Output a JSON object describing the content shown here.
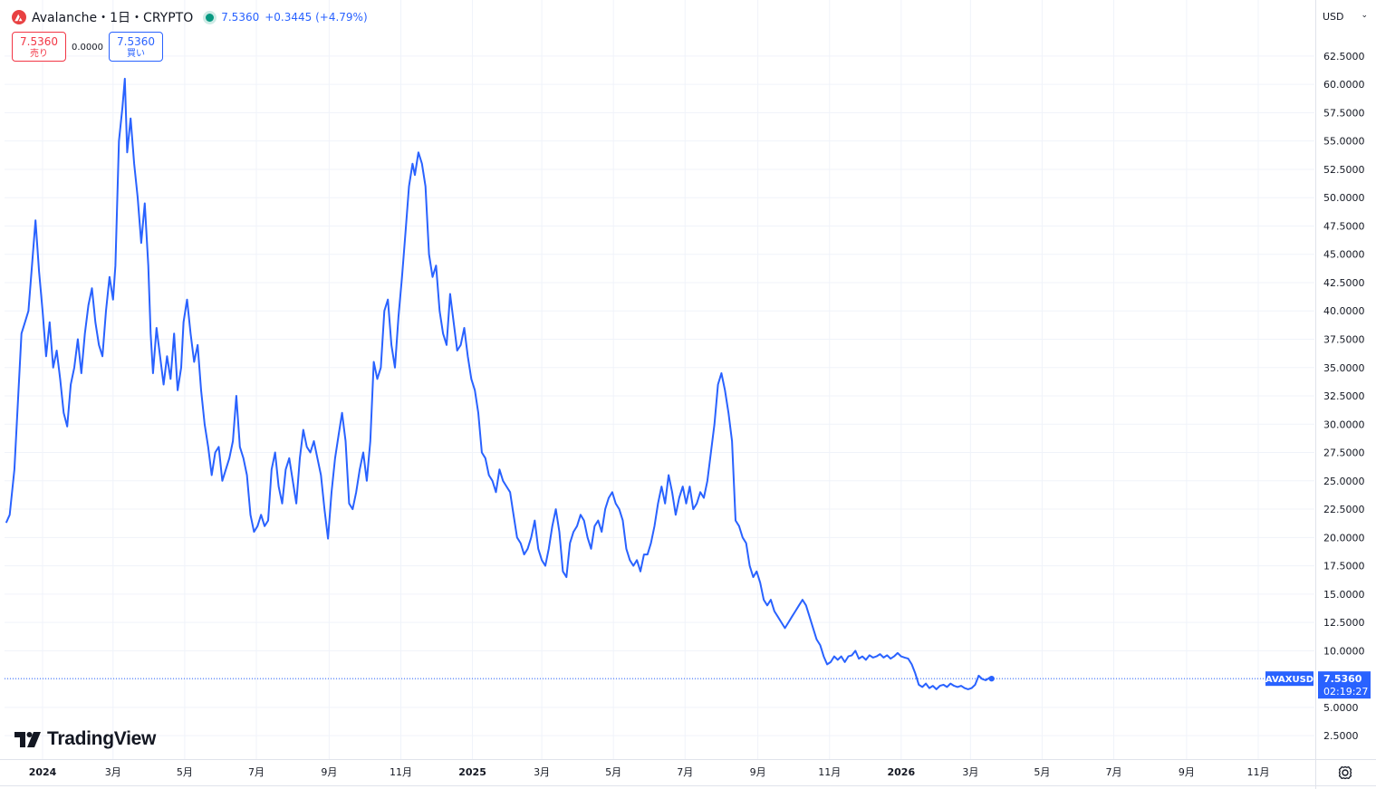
{
  "header": {
    "title": "Avalanche・1日・CRYPTO",
    "price": "7.5360",
    "change": "+0.3445 (+4.79%)"
  },
  "trade": {
    "sell_price": "7.5360",
    "sell_label": "売り",
    "spread": "0.0000",
    "buy_price": "7.5360",
    "buy_label": "買い"
  },
  "currency": "USD",
  "brand": "TradingView",
  "colors": {
    "line": "#2962ff",
    "sell": "#f23645",
    "buy": "#2962ff",
    "grid": "#f0f3fa",
    "status_dot": "#089981"
  },
  "price_tag": {
    "symbol": "AVAXUSD",
    "price": "7.5360",
    "countdown": "02:19:27"
  },
  "chart_data": {
    "type": "line",
    "series_label": "AVAXUSD",
    "ylim": [
      0,
      64.5
    ],
    "y_ticks": [
      "2.5000",
      "5.0000",
      "7.5000",
      "10.0000",
      "12.5000",
      "15.0000",
      "17.5000",
      "20.0000",
      "22.5000",
      "25.0000",
      "27.5000",
      "30.0000",
      "32.5000",
      "35.0000",
      "37.5000",
      "40.0000",
      "42.5000",
      "45.0000",
      "47.5000",
      "50.0000",
      "52.5000",
      "55.0000",
      "57.5000",
      "60.0000",
      "62.5000"
    ],
    "x_ticks": [
      {
        "label": "2024",
        "date": "2024-01-01",
        "bold": true
      },
      {
        "label": "3月",
        "date": "2024-03-01"
      },
      {
        "label": "5月",
        "date": "2024-05-01"
      },
      {
        "label": "7月",
        "date": "2024-07-01"
      },
      {
        "label": "9月",
        "date": "2024-09-01"
      },
      {
        "label": "11月",
        "date": "2024-11-01"
      },
      {
        "label": "2025",
        "date": "2025-01-01",
        "bold": true
      },
      {
        "label": "3月",
        "date": "2025-03-01"
      },
      {
        "label": "5月",
        "date": "2025-05-01"
      },
      {
        "label": "7月",
        "date": "2025-07-01"
      },
      {
        "label": "9月",
        "date": "2025-09-01"
      },
      {
        "label": "11月",
        "date": "2025-11-01"
      },
      {
        "label": "2026",
        "date": "2026-01-01",
        "bold": true
      },
      {
        "label": "3月",
        "date": "2026-03-01"
      },
      {
        "label": "5月",
        "date": "2026-05-01"
      },
      {
        "label": "7月",
        "date": "2026-07-01"
      },
      {
        "label": "9月",
        "date": "2026-09-01"
      },
      {
        "label": "11月",
        "date": "2026-11-01"
      }
    ],
    "last_value": 7.536,
    "points": [
      [
        "2023-12-01",
        21.3
      ],
      [
        "2023-12-04",
        22.0
      ],
      [
        "2023-12-08",
        26.0
      ],
      [
        "2023-12-11",
        32.0
      ],
      [
        "2023-12-14",
        38.0
      ],
      [
        "2023-12-17",
        39.0
      ],
      [
        "2023-12-20",
        40.0
      ],
      [
        "2023-12-23",
        44.0
      ],
      [
        "2023-12-26",
        48.0
      ],
      [
        "2023-12-29",
        43.5
      ],
      [
        "2024-01-01",
        40.0
      ],
      [
        "2024-01-04",
        36.0
      ],
      [
        "2024-01-07",
        39.0
      ],
      [
        "2024-01-10",
        35.0
      ],
      [
        "2024-01-13",
        36.5
      ],
      [
        "2024-01-16",
        34.0
      ],
      [
        "2024-01-19",
        31.0
      ],
      [
        "2024-01-22",
        29.8
      ],
      [
        "2024-01-25",
        33.5
      ],
      [
        "2024-01-28",
        35.0
      ],
      [
        "2024-01-31",
        37.5
      ],
      [
        "2024-02-03",
        34.5
      ],
      [
        "2024-02-06",
        38.0
      ],
      [
        "2024-02-09",
        40.5
      ],
      [
        "2024-02-12",
        42.0
      ],
      [
        "2024-02-15",
        39.0
      ],
      [
        "2024-02-18",
        37.0
      ],
      [
        "2024-02-21",
        36.0
      ],
      [
        "2024-02-24",
        40.0
      ],
      [
        "2024-02-27",
        43.0
      ],
      [
        "2024-03-01",
        41.0
      ],
      [
        "2024-03-03",
        44.0
      ],
      [
        "2024-03-06",
        55.0
      ],
      [
        "2024-03-09",
        58.0
      ],
      [
        "2024-03-11",
        60.5
      ],
      [
        "2024-03-13",
        54.0
      ],
      [
        "2024-03-16",
        57.0
      ],
      [
        "2024-03-19",
        53.0
      ],
      [
        "2024-03-22",
        50.0
      ],
      [
        "2024-03-25",
        46.0
      ],
      [
        "2024-03-28",
        49.5
      ],
      [
        "2024-03-31",
        44.0
      ],
      [
        "2024-04-02",
        38.0
      ],
      [
        "2024-04-04",
        34.5
      ],
      [
        "2024-04-07",
        38.5
      ],
      [
        "2024-04-10",
        36.0
      ],
      [
        "2024-04-13",
        33.5
      ],
      [
        "2024-04-16",
        36.0
      ],
      [
        "2024-04-19",
        34.0
      ],
      [
        "2024-04-22",
        38.0
      ],
      [
        "2024-04-25",
        33.0
      ],
      [
        "2024-04-28",
        35.0
      ],
      [
        "2024-04-30",
        39.0
      ],
      [
        "2024-05-03",
        41.0
      ],
      [
        "2024-05-06",
        38.0
      ],
      [
        "2024-05-09",
        35.5
      ],
      [
        "2024-05-12",
        37.0
      ],
      [
        "2024-05-15",
        33.0
      ],
      [
        "2024-05-18",
        30.0
      ],
      [
        "2024-05-21",
        28.0
      ],
      [
        "2024-05-24",
        25.5
      ],
      [
        "2024-05-27",
        27.5
      ],
      [
        "2024-05-30",
        28.0
      ],
      [
        "2024-06-02",
        25.0
      ],
      [
        "2024-06-05",
        26.0
      ],
      [
        "2024-06-08",
        27.0
      ],
      [
        "2024-06-11",
        28.5
      ],
      [
        "2024-06-14",
        32.5
      ],
      [
        "2024-06-17",
        28.0
      ],
      [
        "2024-06-20",
        27.0
      ],
      [
        "2024-06-23",
        25.5
      ],
      [
        "2024-06-26",
        22.0
      ],
      [
        "2024-06-29",
        20.5
      ],
      [
        "2024-07-02",
        21.0
      ],
      [
        "2024-07-05",
        22.0
      ],
      [
        "2024-07-08",
        21.0
      ],
      [
        "2024-07-11",
        21.5
      ],
      [
        "2024-07-14",
        26.0
      ],
      [
        "2024-07-17",
        27.5
      ],
      [
        "2024-07-20",
        24.5
      ],
      [
        "2024-07-23",
        23.0
      ],
      [
        "2024-07-26",
        26.0
      ],
      [
        "2024-07-29",
        27.0
      ],
      [
        "2024-08-01",
        25.0
      ],
      [
        "2024-08-04",
        23.0
      ],
      [
        "2024-08-07",
        27.0
      ],
      [
        "2024-08-10",
        29.5
      ],
      [
        "2024-08-13",
        28.0
      ],
      [
        "2024-08-16",
        27.5
      ],
      [
        "2024-08-19",
        28.5
      ],
      [
        "2024-08-22",
        27.0
      ],
      [
        "2024-08-25",
        25.5
      ],
      [
        "2024-08-28",
        22.5
      ],
      [
        "2024-08-31",
        19.9
      ],
      [
        "2024-09-03",
        24.0
      ],
      [
        "2024-09-06",
        27.0
      ],
      [
        "2024-09-09",
        29.0
      ],
      [
        "2024-09-12",
        31.0
      ],
      [
        "2024-09-15",
        28.5
      ],
      [
        "2024-09-18",
        23.0
      ],
      [
        "2024-09-21",
        22.5
      ],
      [
        "2024-09-24",
        24.0
      ],
      [
        "2024-09-27",
        26.0
      ],
      [
        "2024-09-30",
        27.5
      ],
      [
        "2024-10-03",
        25.0
      ],
      [
        "2024-10-06",
        28.5
      ],
      [
        "2024-10-09",
        35.5
      ],
      [
        "2024-10-12",
        34.0
      ],
      [
        "2024-10-15",
        35.0
      ],
      [
        "2024-10-18",
        40.0
      ],
      [
        "2024-10-21",
        41.0
      ],
      [
        "2024-10-24",
        37.0
      ],
      [
        "2024-10-27",
        35.0
      ],
      [
        "2024-10-30",
        39.5
      ],
      [
        "2024-11-02",
        43.0
      ],
      [
        "2024-11-05",
        47.0
      ],
      [
        "2024-11-08",
        51.0
      ],
      [
        "2024-11-11",
        53.0
      ],
      [
        "2024-11-13",
        52.0
      ],
      [
        "2024-11-16",
        54.0
      ],
      [
        "2024-11-19",
        53.0
      ],
      [
        "2024-11-22",
        51.0
      ],
      [
        "2024-11-25",
        45.0
      ],
      [
        "2024-11-28",
        43.0
      ],
      [
        "2024-12-01",
        44.0
      ],
      [
        "2024-12-04",
        40.0
      ],
      [
        "2024-12-07",
        38.0
      ],
      [
        "2024-12-10",
        37.0
      ],
      [
        "2024-12-13",
        41.5
      ],
      [
        "2024-12-16",
        39.0
      ],
      [
        "2024-12-19",
        36.5
      ],
      [
        "2024-12-22",
        37.0
      ],
      [
        "2024-12-25",
        38.5
      ],
      [
        "2024-12-28",
        36.0
      ],
      [
        "2024-12-31",
        34.0
      ],
      [
        "2025-01-03",
        33.0
      ],
      [
        "2025-01-06",
        31.0
      ],
      [
        "2025-01-09",
        27.5
      ],
      [
        "2025-01-12",
        27.0
      ],
      [
        "2025-01-15",
        25.5
      ],
      [
        "2025-01-18",
        25.0
      ],
      [
        "2025-01-21",
        24.0
      ],
      [
        "2025-01-24",
        26.0
      ],
      [
        "2025-01-27",
        25.0
      ],
      [
        "2025-01-30",
        24.5
      ],
      [
        "2025-02-02",
        24.0
      ],
      [
        "2025-02-05",
        22.0
      ],
      [
        "2025-02-08",
        20.0
      ],
      [
        "2025-02-11",
        19.5
      ],
      [
        "2025-02-14",
        18.5
      ],
      [
        "2025-02-17",
        19.0
      ],
      [
        "2025-02-20",
        20.0
      ],
      [
        "2025-02-23",
        21.5
      ],
      [
        "2025-02-26",
        19.0
      ],
      [
        "2025-03-01",
        18.0
      ],
      [
        "2025-03-04",
        17.5
      ],
      [
        "2025-03-07",
        19.0
      ],
      [
        "2025-03-10",
        21.0
      ],
      [
        "2025-03-13",
        22.5
      ],
      [
        "2025-03-16",
        20.5
      ],
      [
        "2025-03-19",
        17.0
      ],
      [
        "2025-03-22",
        16.5
      ],
      [
        "2025-03-25",
        19.5
      ],
      [
        "2025-03-28",
        20.5
      ],
      [
        "2025-03-31",
        21.0
      ],
      [
        "2025-04-03",
        22.0
      ],
      [
        "2025-04-06",
        21.5
      ],
      [
        "2025-04-09",
        20.0
      ],
      [
        "2025-04-12",
        19.0
      ],
      [
        "2025-04-15",
        21.0
      ],
      [
        "2025-04-18",
        21.5
      ],
      [
        "2025-04-21",
        20.5
      ],
      [
        "2025-04-24",
        22.5
      ],
      [
        "2025-04-27",
        23.5
      ],
      [
        "2025-04-30",
        24.0
      ],
      [
        "2025-05-03",
        23.0
      ],
      [
        "2025-05-06",
        22.5
      ],
      [
        "2025-05-09",
        21.5
      ],
      [
        "2025-05-12",
        19.0
      ],
      [
        "2025-05-15",
        18.0
      ],
      [
        "2025-05-18",
        17.5
      ],
      [
        "2025-05-21",
        18.0
      ],
      [
        "2025-05-24",
        17.0
      ],
      [
        "2025-05-27",
        18.5
      ],
      [
        "2025-05-30",
        18.5
      ],
      [
        "2025-06-02",
        19.5
      ],
      [
        "2025-06-05",
        21.0
      ],
      [
        "2025-06-08",
        23.0
      ],
      [
        "2025-06-11",
        24.5
      ],
      [
        "2025-06-14",
        23.0
      ],
      [
        "2025-06-17",
        25.5
      ],
      [
        "2025-06-20",
        24.0
      ],
      [
        "2025-06-23",
        22.0
      ],
      [
        "2025-06-26",
        23.5
      ],
      [
        "2025-06-29",
        24.5
      ],
      [
        "2025-07-02",
        23.0
      ],
      [
        "2025-07-05",
        24.5
      ],
      [
        "2025-07-08",
        22.5
      ],
      [
        "2025-07-11",
        23.0
      ],
      [
        "2025-07-14",
        24.0
      ],
      [
        "2025-07-17",
        23.5
      ],
      [
        "2025-07-20",
        25.0
      ],
      [
        "2025-07-23",
        27.5
      ],
      [
        "2025-07-26",
        30.0
      ],
      [
        "2025-07-29",
        33.5
      ],
      [
        "2025-08-01",
        34.5
      ],
      [
        "2025-08-04",
        33.0
      ],
      [
        "2025-08-07",
        31.0
      ],
      [
        "2025-08-10",
        28.5
      ],
      [
        "2025-08-13",
        21.5
      ],
      [
        "2025-08-16",
        21.0
      ],
      [
        "2025-08-19",
        20.0
      ],
      [
        "2025-08-22",
        19.5
      ],
      [
        "2025-08-25",
        17.5
      ],
      [
        "2025-08-28",
        16.5
      ],
      [
        "2025-08-31",
        17.0
      ],
      [
        "2025-09-03",
        16.0
      ],
      [
        "2025-09-06",
        14.5
      ],
      [
        "2025-09-09",
        14.0
      ],
      [
        "2025-09-12",
        14.5
      ],
      [
        "2025-09-15",
        13.5
      ],
      [
        "2025-09-18",
        13.0
      ],
      [
        "2025-09-21",
        12.5
      ],
      [
        "2025-09-24",
        12.0
      ],
      [
        "2025-09-27",
        12.5
      ],
      [
        "2025-09-30",
        13.0
      ],
      [
        "2025-10-03",
        13.5
      ],
      [
        "2025-10-06",
        14.0
      ],
      [
        "2025-10-09",
        14.5
      ],
      [
        "2025-10-12",
        14.0
      ],
      [
        "2025-10-15",
        13.0
      ],
      [
        "2025-10-18",
        12.0
      ],
      [
        "2025-10-21",
        11.0
      ],
      [
        "2025-10-24",
        10.5
      ],
      [
        "2025-10-27",
        9.5
      ],
      [
        "2025-10-30",
        8.8
      ],
      [
        "2025-11-02",
        9.0
      ],
      [
        "2025-11-05",
        9.5
      ],
      [
        "2025-11-08",
        9.2
      ],
      [
        "2025-11-11",
        9.5
      ],
      [
        "2025-11-14",
        9.0
      ],
      [
        "2025-11-17",
        9.5
      ],
      [
        "2025-11-20",
        9.6
      ],
      [
        "2025-11-23",
        10.0
      ],
      [
        "2025-11-26",
        9.3
      ],
      [
        "2025-11-29",
        9.5
      ],
      [
        "2025-12-02",
        9.2
      ],
      [
        "2025-12-05",
        9.6
      ],
      [
        "2025-12-08",
        9.4
      ],
      [
        "2025-12-11",
        9.5
      ],
      [
        "2025-12-14",
        9.7
      ],
      [
        "2025-12-17",
        9.4
      ],
      [
        "2025-12-20",
        9.6
      ],
      [
        "2025-12-23",
        9.3
      ],
      [
        "2025-12-26",
        9.5
      ],
      [
        "2025-12-29",
        9.8
      ],
      [
        "2026-01-01",
        9.5
      ],
      [
        "2026-01-04",
        9.4
      ],
      [
        "2026-01-07",
        9.3
      ],
      [
        "2026-01-10",
        8.8
      ],
      [
        "2026-01-13",
        8.0
      ],
      [
        "2026-01-16",
        7.0
      ],
      [
        "2026-01-19",
        6.8
      ],
      [
        "2026-01-22",
        7.1
      ],
      [
        "2026-01-25",
        6.7
      ],
      [
        "2026-01-28",
        6.9
      ],
      [
        "2026-01-31",
        6.6
      ],
      [
        "2026-02-03",
        6.9
      ],
      [
        "2026-02-06",
        7.0
      ],
      [
        "2026-02-09",
        6.8
      ],
      [
        "2026-02-12",
        7.1
      ],
      [
        "2026-02-15",
        6.9
      ],
      [
        "2026-02-18",
        6.8
      ],
      [
        "2026-02-21",
        6.9
      ],
      [
        "2026-02-24",
        6.7
      ],
      [
        "2026-02-27",
        6.6
      ],
      [
        "2026-03-02",
        6.7
      ],
      [
        "2026-03-05",
        7.0
      ],
      [
        "2026-03-08",
        7.8
      ],
      [
        "2026-03-11",
        7.5
      ],
      [
        "2026-03-14",
        7.4
      ],
      [
        "2026-03-17",
        7.6
      ],
      [
        "2026-03-19",
        7.536
      ]
    ]
  }
}
